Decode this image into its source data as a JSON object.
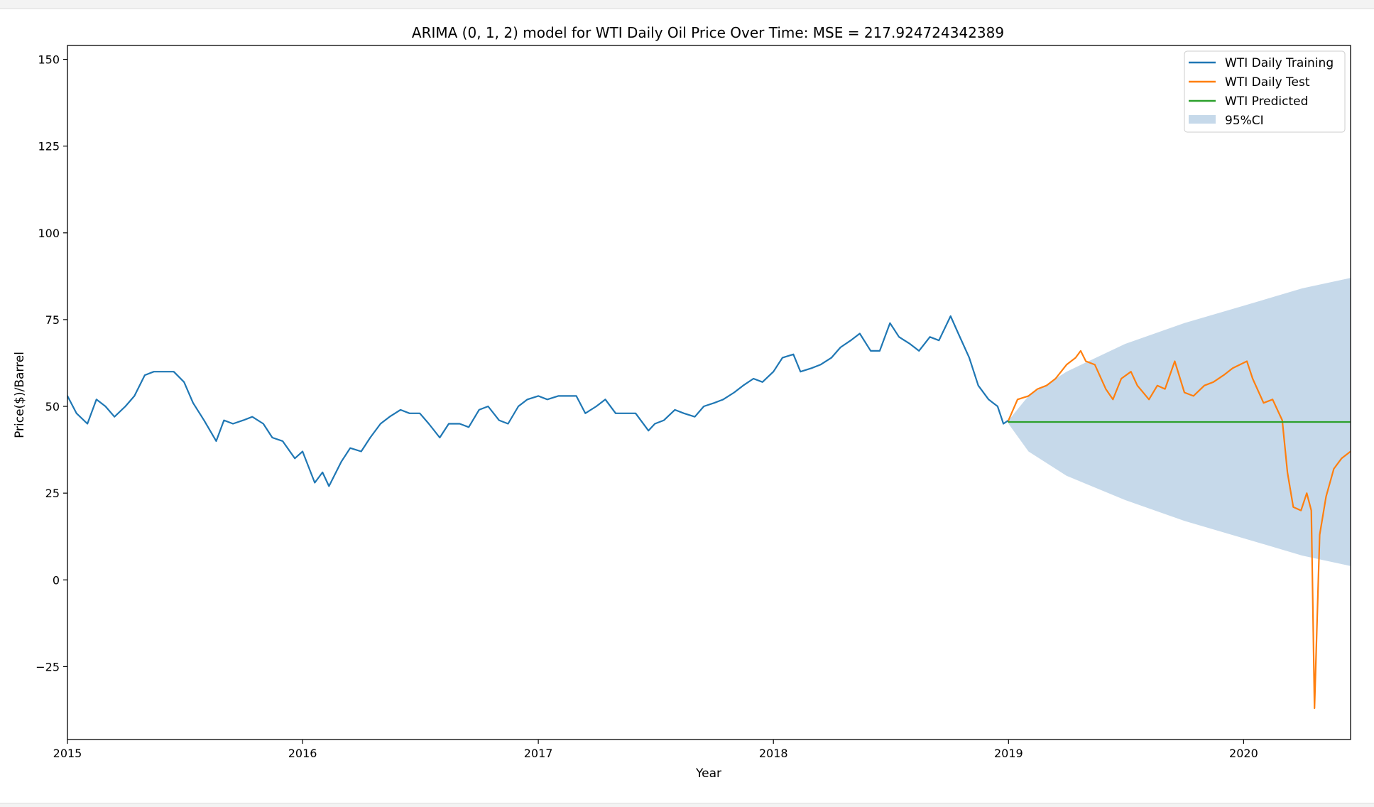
{
  "chart_data": {
    "type": "line",
    "title": "ARIMA (0, 1, 2) model for WTI Daily Oil Price Over Time: MSE = 217.924724342389",
    "xlabel": "Year",
    "ylabel": "Price($)/Barrel",
    "xlim": [
      "2015-01-01",
      "2020-06-15"
    ],
    "ylim": [
      -46,
      154
    ],
    "x_ticks": [
      "2015",
      "2016",
      "2017",
      "2018",
      "2019",
      "2020"
    ],
    "y_ticks": [
      -25,
      0,
      25,
      50,
      75,
      100,
      125,
      150
    ],
    "y_tick_labels": [
      "−25",
      "0",
      "25",
      "50",
      "75",
      "100",
      "125",
      "150"
    ],
    "grid": false,
    "legend_position": "top-right",
    "series": [
      {
        "name": "WTI Daily Training",
        "color": "#1f77b4",
        "points": [
          [
            "2015-01-01",
            53
          ],
          [
            "2015-01-15",
            48
          ],
          [
            "2015-02-01",
            45
          ],
          [
            "2015-02-15",
            52
          ],
          [
            "2015-03-01",
            50
          ],
          [
            "2015-03-15",
            47
          ],
          [
            "2015-04-01",
            50
          ],
          [
            "2015-04-15",
            53
          ],
          [
            "2015-05-01",
            59
          ],
          [
            "2015-05-15",
            60
          ],
          [
            "2015-06-01",
            60
          ],
          [
            "2015-06-15",
            60
          ],
          [
            "2015-07-01",
            57
          ],
          [
            "2015-07-15",
            51
          ],
          [
            "2015-08-01",
            46
          ],
          [
            "2015-08-20",
            40
          ],
          [
            "2015-09-01",
            46
          ],
          [
            "2015-09-15",
            45
          ],
          [
            "2015-10-01",
            46
          ],
          [
            "2015-10-15",
            47
          ],
          [
            "2015-11-01",
            45
          ],
          [
            "2015-11-15",
            41
          ],
          [
            "2015-12-01",
            40
          ],
          [
            "2015-12-20",
            35
          ],
          [
            "2016-01-01",
            37
          ],
          [
            "2016-01-20",
            28
          ],
          [
            "2016-02-01",
            31
          ],
          [
            "2016-02-11",
            27
          ],
          [
            "2016-03-01",
            34
          ],
          [
            "2016-03-15",
            38
          ],
          [
            "2016-04-01",
            37
          ],
          [
            "2016-04-15",
            41
          ],
          [
            "2016-05-01",
            45
          ],
          [
            "2016-05-15",
            47
          ],
          [
            "2016-06-01",
            49
          ],
          [
            "2016-06-15",
            48
          ],
          [
            "2016-07-01",
            48
          ],
          [
            "2016-07-15",
            45
          ],
          [
            "2016-08-01",
            41
          ],
          [
            "2016-08-15",
            45
          ],
          [
            "2016-09-01",
            45
          ],
          [
            "2016-09-15",
            44
          ],
          [
            "2016-10-01",
            49
          ],
          [
            "2016-10-15",
            50
          ],
          [
            "2016-11-01",
            46
          ],
          [
            "2016-11-15",
            45
          ],
          [
            "2016-12-01",
            50
          ],
          [
            "2016-12-15",
            52
          ],
          [
            "2017-01-01",
            53
          ],
          [
            "2017-01-15",
            52
          ],
          [
            "2017-02-01",
            53
          ],
          [
            "2017-02-15",
            53
          ],
          [
            "2017-03-01",
            53
          ],
          [
            "2017-03-15",
            48
          ],
          [
            "2017-04-01",
            50
          ],
          [
            "2017-04-15",
            52
          ],
          [
            "2017-05-01",
            48
          ],
          [
            "2017-05-15",
            48
          ],
          [
            "2017-06-01",
            48
          ],
          [
            "2017-06-21",
            43
          ],
          [
            "2017-07-01",
            45
          ],
          [
            "2017-07-15",
            46
          ],
          [
            "2017-08-01",
            49
          ],
          [
            "2017-08-15",
            48
          ],
          [
            "2017-09-01",
            47
          ],
          [
            "2017-09-15",
            50
          ],
          [
            "2017-10-01",
            51
          ],
          [
            "2017-10-15",
            52
          ],
          [
            "2017-11-01",
            54
          ],
          [
            "2017-11-15",
            56
          ],
          [
            "2017-12-01",
            58
          ],
          [
            "2017-12-15",
            57
          ],
          [
            "2018-01-01",
            60
          ],
          [
            "2018-01-15",
            64
          ],
          [
            "2018-02-01",
            65
          ],
          [
            "2018-02-12",
            60
          ],
          [
            "2018-03-01",
            61
          ],
          [
            "2018-03-15",
            62
          ],
          [
            "2018-04-01",
            64
          ],
          [
            "2018-04-15",
            67
          ],
          [
            "2018-05-01",
            69
          ],
          [
            "2018-05-15",
            71
          ],
          [
            "2018-06-01",
            66
          ],
          [
            "2018-06-15",
            66
          ],
          [
            "2018-07-01",
            74
          ],
          [
            "2018-07-15",
            70
          ],
          [
            "2018-08-01",
            68
          ],
          [
            "2018-08-15",
            66
          ],
          [
            "2018-09-01",
            70
          ],
          [
            "2018-09-15",
            69
          ],
          [
            "2018-10-03",
            76
          ],
          [
            "2018-10-15",
            71
          ],
          [
            "2018-11-01",
            64
          ],
          [
            "2018-11-15",
            56
          ],
          [
            "2018-12-01",
            52
          ],
          [
            "2018-12-15",
            50
          ],
          [
            "2018-12-24",
            45
          ],
          [
            "2019-01-01",
            46
          ]
        ]
      },
      {
        "name": "WTI Daily Test",
        "color": "#ff7f0e",
        "points": [
          [
            "2019-01-01",
            46
          ],
          [
            "2019-01-15",
            52
          ],
          [
            "2019-02-01",
            53
          ],
          [
            "2019-02-15",
            55
          ],
          [
            "2019-03-01",
            56
          ],
          [
            "2019-03-15",
            58
          ],
          [
            "2019-04-01",
            62
          ],
          [
            "2019-04-15",
            64
          ],
          [
            "2019-04-23",
            66
          ],
          [
            "2019-05-01",
            63
          ],
          [
            "2019-05-15",
            62
          ],
          [
            "2019-06-01",
            55
          ],
          [
            "2019-06-12",
            52
          ],
          [
            "2019-06-25",
            58
          ],
          [
            "2019-07-10",
            60
          ],
          [
            "2019-07-20",
            56
          ],
          [
            "2019-08-07",
            52
          ],
          [
            "2019-08-20",
            56
          ],
          [
            "2019-09-01",
            55
          ],
          [
            "2019-09-16",
            63
          ],
          [
            "2019-10-01",
            54
          ],
          [
            "2019-10-15",
            53
          ],
          [
            "2019-11-01",
            56
          ],
          [
            "2019-11-15",
            57
          ],
          [
            "2019-12-01",
            59
          ],
          [
            "2019-12-15",
            61
          ],
          [
            "2020-01-06",
            63
          ],
          [
            "2020-01-15",
            58
          ],
          [
            "2020-02-01",
            51
          ],
          [
            "2020-02-15",
            52
          ],
          [
            "2020-03-01",
            46
          ],
          [
            "2020-03-09",
            31
          ],
          [
            "2020-03-18",
            21
          ],
          [
            "2020-03-30",
            20
          ],
          [
            "2020-04-08",
            25
          ],
          [
            "2020-04-15",
            20
          ],
          [
            "2020-04-20",
            -37
          ],
          [
            "2020-04-28",
            13
          ],
          [
            "2020-05-08",
            24
          ],
          [
            "2020-05-20",
            32
          ],
          [
            "2020-06-01",
            35
          ],
          [
            "2020-06-15",
            37
          ]
        ]
      },
      {
        "name": "WTI Predicted",
        "color": "#2ca02c",
        "points": [
          [
            "2019-01-01",
            45.5
          ],
          [
            "2020-06-15",
            45.5
          ]
        ]
      },
      {
        "name": "95%CI",
        "color": "#c6d9ea",
        "type": "band",
        "x": [
          "2019-01-01",
          "2019-02-01",
          "2019-04-01",
          "2019-07-01",
          "2019-10-01",
          "2020-01-01",
          "2020-04-01",
          "2020-06-15"
        ],
        "upper": [
          46,
          53,
          60,
          68,
          74,
          79,
          84,
          87
        ],
        "lower": [
          45,
          37,
          30,
          23,
          17,
          12,
          7,
          4
        ]
      }
    ]
  }
}
